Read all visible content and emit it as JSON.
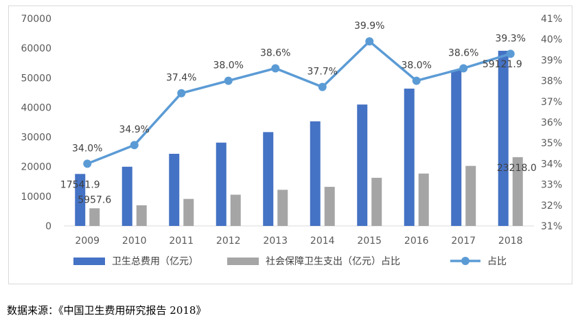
{
  "chart_data": {
    "type": "bar+line",
    "categories": [
      "2009",
      "2010",
      "2011",
      "2012",
      "2013",
      "2014",
      "2015",
      "2016",
      "2017",
      "2018"
    ],
    "series": [
      {
        "name": "卫生总费用（亿元）",
        "type": "bar",
        "axis": "left",
        "color": "#4472C4",
        "values": [
          17541.9,
          19980,
          24346,
          28119,
          31669,
          35312,
          40975,
          46345,
          52598,
          59121.9
        ]
      },
      {
        "name": "社会保障卫生支出（亿元）占比",
        "type": "bar",
        "axis": "left",
        "color": "#A5A5A5",
        "values": [
          5957.6,
          6973,
          9120,
          10542,
          12197,
          13193,
          16247,
          17681,
          20263,
          23218.0
        ]
      },
      {
        "name": "占比",
        "type": "line",
        "axis": "right",
        "color": "#5B9BD5",
        "values": [
          34.0,
          34.9,
          37.4,
          38.0,
          38.6,
          37.7,
          39.9,
          38.0,
          38.6,
          39.3
        ]
      }
    ],
    "bar_value_labels": [
      {
        "series": 0,
        "index": 0,
        "text": "17541.9"
      },
      {
        "series": 1,
        "index": 0,
        "text": "5957.6"
      },
      {
        "series": 0,
        "index": 9,
        "text": "59121.9"
      },
      {
        "series": 1,
        "index": 9,
        "text": "23218.0"
      }
    ],
    "line_value_labels": [
      "34.0%",
      "34.9%",
      "37.4%",
      "38.0%",
      "38.6%",
      "37.7%",
      "39.9%",
      "38.0%",
      "38.6%",
      "39.3%"
    ],
    "y_left": {
      "min": 0,
      "max": 70000,
      "step": 10000,
      "ticks": [
        "0",
        "10000",
        "20000",
        "30000",
        "40000",
        "50000",
        "60000",
        "70000"
      ]
    },
    "y_right": {
      "min": 31,
      "max": 41,
      "step": 1,
      "ticks": [
        "31%",
        "32%",
        "33%",
        "34%",
        "35%",
        "36%",
        "37%",
        "38%",
        "39%",
        "40%",
        "41%"
      ]
    },
    "gridlines": false,
    "legend_position": "bottom"
  },
  "footer": {
    "source": "数据来源：《中国卫生费用研究报告 2018》"
  }
}
